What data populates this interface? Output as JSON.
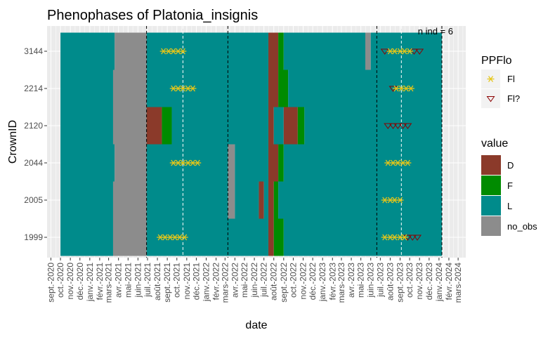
{
  "chart_data": {
    "type": "heatmap",
    "title": "Phenophases of Platonia_insignis",
    "xlabel": "date",
    "ylabel": "CrownID",
    "annotation": "n ind = 6",
    "x_ticks": [
      "sept.-2020",
      "oct.-2020",
      "nov.-2020",
      "déc.-2020",
      "janv.-2021",
      "févr.-2021",
      "mars-2021",
      "avr.-2021",
      "mai-2021",
      "juin-2021",
      "juil.-2021",
      "août-2021",
      "sept.-2021",
      "oct.-2021",
      "nov.-2021",
      "déc.-2021",
      "janv.-2022",
      "févr.-2022",
      "mars-2022",
      "avr.-2022",
      "mai-2022",
      "juin-2022",
      "juil.-2022",
      "août-2022",
      "sept.-2022",
      "oct.-2022",
      "nov.-2022",
      "déc.-2022",
      "janv.-2023",
      "févr.-2023",
      "mars-2023",
      "avr.-2023",
      "mai-2023",
      "juin-2023",
      "juil.-2023",
      "août-2023",
      "sept.-2023",
      "oct.-2023",
      "nov.-2023",
      "déc.-2023",
      "janv.-2024",
      "févr.-2024",
      "mars-2024"
    ],
    "x_range": [
      "2020-08-20",
      "2024-03-25"
    ],
    "crowns": [
      "1999",
      "2005",
      "2044",
      "2120",
      "2214",
      "3144"
    ],
    "colors": {
      "D": "#8B3A2A",
      "F": "#008B00",
      "L": "#008B8B",
      "no_obs": "#8C8C8C"
    },
    "vlines_black": [
      "2021-06-28",
      "2022-03-10",
      "2023-06-20",
      "2024-01-10"
    ],
    "vlines_white": [
      "2021-10-20",
      "2023-09-05"
    ],
    "segments": {
      "3144": [
        [
          "2020-10-01",
          "2021-03-20",
          "L"
        ],
        [
          "2021-03-20",
          "2021-06-28",
          "no_obs"
        ],
        [
          "2021-06-28",
          "2022-07-15",
          "L"
        ],
        [
          "2022-07-15",
          "2022-08-15",
          "D"
        ],
        [
          "2022-08-15",
          "2022-09-01",
          "F"
        ],
        [
          "2022-09-01",
          "2023-05-15",
          "L"
        ],
        [
          "2023-05-15",
          "2023-06-01",
          "no_obs"
        ],
        [
          "2023-06-01",
          "2024-01-10",
          "L"
        ]
      ],
      "2214": [
        [
          "2020-10-01",
          "2021-03-15",
          "L"
        ],
        [
          "2021-03-15",
          "2021-06-28",
          "no_obs"
        ],
        [
          "2021-06-28",
          "2022-07-15",
          "L"
        ],
        [
          "2022-07-15",
          "2022-08-15",
          "D"
        ],
        [
          "2022-08-15",
          "2022-09-15",
          "F"
        ],
        [
          "2022-09-15",
          "2024-01-10",
          "L"
        ]
      ],
      "2120": [
        [
          "2020-10-01",
          "2021-03-15",
          "L"
        ],
        [
          "2021-03-15",
          "2021-06-28",
          "no_obs"
        ],
        [
          "2021-06-28",
          "2021-08-15",
          "D"
        ],
        [
          "2021-08-15",
          "2021-09-15",
          "F"
        ],
        [
          "2021-09-15",
          "2022-07-15",
          "L"
        ],
        [
          "2022-07-15",
          "2022-08-01",
          "D"
        ],
        [
          "2022-08-01",
          "2022-09-01",
          "L"
        ],
        [
          "2022-09-01",
          "2022-10-15",
          "D"
        ],
        [
          "2022-10-15",
          "2022-11-05",
          "F"
        ],
        [
          "2022-11-05",
          "2024-01-10",
          "L"
        ]
      ],
      "2044": [
        [
          "2020-10-01",
          "2021-03-20",
          "L"
        ],
        [
          "2021-03-20",
          "2021-06-28",
          "no_obs"
        ],
        [
          "2021-06-28",
          "2022-03-10",
          "L"
        ],
        [
          "2022-03-10",
          "2022-04-01",
          "no_obs"
        ],
        [
          "2022-04-01",
          "2022-07-15",
          "L"
        ],
        [
          "2022-07-15",
          "2022-08-15",
          "D"
        ],
        [
          "2022-08-15",
          "2022-09-01",
          "F"
        ],
        [
          "2022-09-01",
          "2024-01-10",
          "L"
        ]
      ],
      "2005": [
        [
          "2020-10-01",
          "2021-03-15",
          "L"
        ],
        [
          "2021-03-15",
          "2021-06-28",
          "no_obs"
        ],
        [
          "2021-06-28",
          "2022-03-10",
          "L"
        ],
        [
          "2022-03-10",
          "2022-04-01",
          "no_obs"
        ],
        [
          "2022-04-01",
          "2022-06-15",
          "L"
        ],
        [
          "2022-06-15",
          "2022-07-01",
          "D"
        ],
        [
          "2022-07-01",
          "2022-07-15",
          "L"
        ],
        [
          "2022-07-15",
          "2022-08-01",
          "D"
        ],
        [
          "2022-08-01",
          "2022-08-15",
          "F"
        ],
        [
          "2022-08-15",
          "2024-01-10",
          "L"
        ]
      ],
      "1999": [
        [
          "2020-10-01",
          "2021-03-15",
          "L"
        ],
        [
          "2021-03-15",
          "2021-06-28",
          "no_obs"
        ],
        [
          "2021-06-28",
          "2022-07-15",
          "L"
        ],
        [
          "2022-07-15",
          "2022-08-01",
          "D"
        ],
        [
          "2022-08-01",
          "2022-09-01",
          "F"
        ],
        [
          "2022-09-01",
          "2024-01-10",
          "L"
        ]
      ]
    },
    "ppflo": {
      "3144": {
        "Fl": [
          "2021-08-20",
          "2021-09-05",
          "2021-09-20",
          "2021-10-05",
          "2021-10-20",
          "2023-08-01",
          "2023-08-15",
          "2023-09-01",
          "2023-09-15",
          "2023-10-01"
        ],
        "Fl?": [
          "2023-07-15",
          "2023-10-15",
          "2023-11-01"
        ]
      },
      "2214": {
        "Fl": [
          "2021-09-20",
          "2021-10-05",
          "2021-10-20",
          "2021-11-05",
          "2021-11-20",
          "2023-08-20",
          "2023-09-05",
          "2023-09-20",
          "2023-10-05"
        ],
        "Fl?": [
          "2023-08-10"
        ]
      },
      "2120": {
        "Fl": [],
        "Fl?": [
          "2023-07-25",
          "2023-08-10",
          "2023-08-25",
          "2023-09-10",
          "2023-09-25"
        ]
      },
      "2044": {
        "Fl": [
          "2021-09-20",
          "2021-10-05",
          "2021-10-20",
          "2021-11-05",
          "2021-11-20",
          "2021-12-05",
          "2023-07-25",
          "2023-08-10",
          "2023-08-25",
          "2023-09-10",
          "2023-09-25"
        ],
        "Fl?": []
      },
      "2005": {
        "Fl": [
          "2023-07-15",
          "2023-08-01",
          "2023-08-15",
          "2023-09-01"
        ],
        "Fl?": []
      },
      "1999": {
        "Fl": [
          "2021-08-10",
          "2021-08-25",
          "2021-09-10",
          "2021-09-25",
          "2021-10-10",
          "2021-10-25",
          "2023-07-15",
          "2023-08-01",
          "2023-08-15",
          "2023-09-01",
          "2023-09-15"
        ],
        "Fl?": [
          "2023-09-25",
          "2023-10-10",
          "2023-10-25"
        ]
      }
    },
    "legend_ppflo": {
      "title": "PPFlo",
      "entries": [
        "Fl",
        "Fl?"
      ],
      "fl_color": "#E6C619",
      "flq_color": "#8B0000"
    },
    "legend_value": {
      "title": "value",
      "entries": [
        "D",
        "F",
        "L",
        "no_obs"
      ]
    }
  }
}
